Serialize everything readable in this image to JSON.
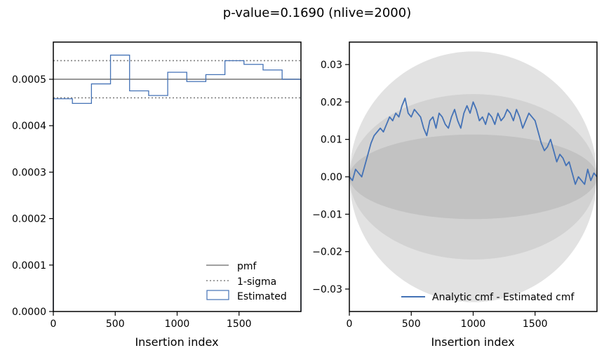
{
  "figure": {
    "title": "p-value=0.1690 (nlive=2000)"
  },
  "colors": {
    "estimated": "#4472b6",
    "pmf": "#808080",
    "band_outer": "#e2e2e2",
    "band_mid": "#d2d2d2",
    "band_inner": "#c2c2c2"
  },
  "chart_data": [
    {
      "type": "line",
      "title": "",
      "xlabel": "Insertion index",
      "ylabel": "",
      "xlim": [
        0,
        2000
      ],
      "ylim": [
        0,
        0.00058
      ],
      "xticks": [
        0,
        500,
        1000,
        1500
      ],
      "xtick_labels": [
        "0",
        "500",
        "1000",
        "1500"
      ],
      "yticks": [
        0,
        0.0001,
        0.0002,
        0.0003,
        0.0004,
        0.0005
      ],
      "ytick_labels": [
        "0.0000",
        "0.0001",
        "0.0002",
        "0.0003",
        "0.0004",
        "0.0005"
      ],
      "grid": false,
      "legend": "bottom-right",
      "pmf": 0.0005,
      "sigma_upper": 0.00054,
      "sigma_lower": 0.00046,
      "series": [
        {
          "name": "pmf",
          "kind": "hline"
        },
        {
          "name": "1-sigma",
          "kind": "dotted-hlines"
        },
        {
          "name": "Estimated",
          "kind": "step-histogram",
          "bin_edges": [
            0,
            154,
            308,
            462,
            616,
            770,
            924,
            1078,
            1232,
            1386,
            1540,
            1694,
            1848,
            2000
          ],
          "values": [
            0.000458,
            0.000448,
            0.00049,
            0.000552,
            0.000475,
            0.000465,
            0.000515,
            0.000495,
            0.00051,
            0.00054,
            0.000532,
            0.00052,
            0.0005
          ]
        }
      ]
    },
    {
      "type": "line",
      "title": "",
      "xlabel": "Insertion index",
      "ylabel": "",
      "xlim": [
        0,
        2000
      ],
      "ylim": [
        -0.036,
        0.036
      ],
      "xticks": [
        0,
        500,
        1000,
        1500
      ],
      "xtick_labels": [
        "0",
        "500",
        "1000",
        "1500"
      ],
      "yticks": [
        0.03,
        0.02,
        0.01,
        0.0,
        -0.01,
        -0.02,
        -0.03
      ],
      "ytick_labels": [
        "0.03",
        "0.02",
        "0.01",
        "0.00",
        "−0.01",
        "−0.02",
        "−0.03"
      ],
      "grid": false,
      "legend": "bottom-right",
      "bands": {
        "inner_peak": 0.0113,
        "mid_peak": 0.0221,
        "outer_peak": 0.0335
      },
      "series": [
        {
          "name": "Analytic cmf - Estimated cmf",
          "x": [
            0,
            25,
            50,
            75,
            100,
            125,
            150,
            175,
            200,
            225,
            250,
            275,
            300,
            325,
            350,
            375,
            400,
            425,
            450,
            475,
            500,
            525,
            550,
            575,
            600,
            625,
            650,
            675,
            700,
            725,
            750,
            775,
            800,
            825,
            850,
            875,
            900,
            925,
            950,
            975,
            1000,
            1025,
            1050,
            1075,
            1100,
            1125,
            1150,
            1175,
            1200,
            1225,
            1250,
            1275,
            1300,
            1325,
            1350,
            1375,
            1400,
            1425,
            1450,
            1475,
            1500,
            1525,
            1550,
            1575,
            1600,
            1625,
            1650,
            1675,
            1700,
            1725,
            1750,
            1775,
            1800,
            1825,
            1850,
            1875,
            1900,
            1925,
            1950,
            1975,
            2000
          ],
          "values": [
            0.0,
            -0.001,
            0.002,
            0.001,
            0.0,
            0.003,
            0.006,
            0.009,
            0.011,
            0.012,
            0.013,
            0.012,
            0.014,
            0.016,
            0.015,
            0.017,
            0.016,
            0.019,
            0.021,
            0.017,
            0.016,
            0.018,
            0.017,
            0.016,
            0.013,
            0.011,
            0.015,
            0.016,
            0.013,
            0.017,
            0.016,
            0.014,
            0.013,
            0.016,
            0.018,
            0.015,
            0.013,
            0.017,
            0.019,
            0.017,
            0.02,
            0.018,
            0.015,
            0.016,
            0.014,
            0.017,
            0.016,
            0.014,
            0.017,
            0.015,
            0.016,
            0.018,
            0.017,
            0.015,
            0.018,
            0.016,
            0.013,
            0.015,
            0.017,
            0.016,
            0.015,
            0.012,
            0.009,
            0.007,
            0.008,
            0.01,
            0.007,
            0.004,
            0.006,
            0.005,
            0.003,
            0.004,
            0.001,
            -0.002,
            0.0,
            -0.001,
            -0.002,
            0.002,
            -0.001,
            0.001,
            0.0
          ]
        }
      ]
    }
  ]
}
